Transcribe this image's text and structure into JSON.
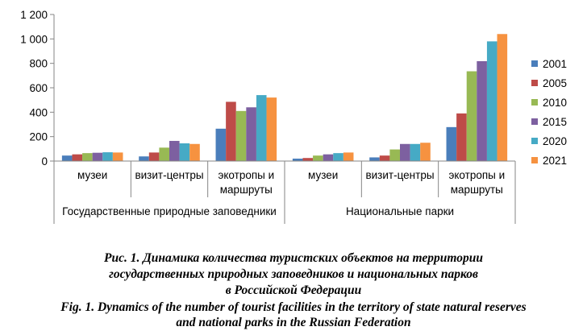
{
  "chart_data": {
    "type": "bar",
    "ylim": [
      0,
      1200
    ],
    "yticks": [
      "0",
      "200",
      "400",
      "600",
      "800",
      "1 000",
      "1 200"
    ],
    "ytick_values": [
      0,
      200,
      400,
      600,
      800,
      1000,
      1200
    ],
    "groups": [
      {
        "label": "Государственные  природные заповедники",
        "categories": [
          {
            "label_lines": [
              "музеи"
            ]
          },
          {
            "label_lines": [
              "визит-центры"
            ]
          },
          {
            "label_lines": [
              "экотропы и",
              "маршруты"
            ]
          }
        ]
      },
      {
        "label": "Национальные парки",
        "categories": [
          {
            "label_lines": [
              "музеи"
            ]
          },
          {
            "label_lines": [
              "визит-центры"
            ]
          },
          {
            "label_lines": [
              "экотропы и",
              "маршруты"
            ]
          }
        ]
      }
    ],
    "series": [
      {
        "name": "2001",
        "color": "#4a7ebb",
        "values": [
          45,
          38,
          265,
          20,
          30,
          278
        ]
      },
      {
        "name": "2005",
        "color": "#be4b48",
        "values": [
          55,
          70,
          485,
          25,
          45,
          390
        ]
      },
      {
        "name": "2010",
        "color": "#98b954",
        "values": [
          65,
          110,
          410,
          45,
          95,
          735
        ]
      },
      {
        "name": "2015",
        "color": "#7d60a0",
        "values": [
          68,
          165,
          440,
          55,
          140,
          818
        ]
      },
      {
        "name": "2020",
        "color": "#46aac5",
        "values": [
          72,
          145,
          540,
          65,
          140,
          980
        ]
      },
      {
        "name": "2021",
        "color": "#f69240",
        "values": [
          70,
          140,
          520,
          70,
          150,
          1040
        ]
      }
    ],
    "legend_position": "right",
    "grid": false
  },
  "caption": {
    "ru_lines": [
      "Рис. 1. Динамика количества туристских объектов на территории",
      "государственных природных заповедников и национальных парков",
      "в Российской Федерации"
    ],
    "en_lines": [
      "Fig. 1. Dynamics of the number of tourist facilities in the territory of state natural reserves",
      "and national parks in the Russian Federation"
    ]
  }
}
